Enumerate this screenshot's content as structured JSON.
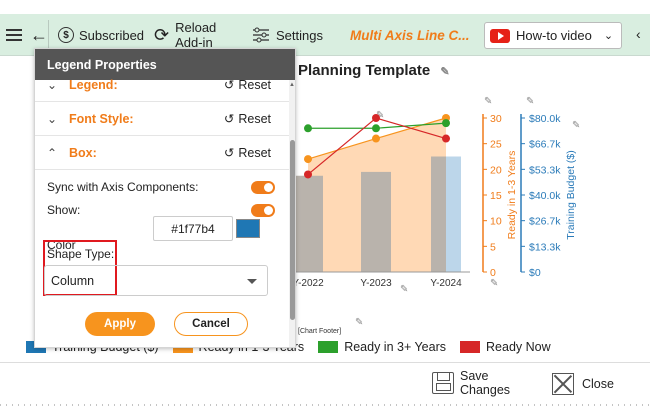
{
  "toolbar": {
    "subscribed_label": "Subscribed",
    "reload_label_1": "Reload",
    "reload_label_2": "Add-in",
    "settings_label": "Settings",
    "title": "Multi Axis Line C...",
    "howto_label": "How-to video"
  },
  "chart": {
    "title_partial": "Planning Template",
    "footer_tag": "Chart Footer]",
    "left_axis_ticks": [
      "30",
      "25",
      "20",
      "15",
      "10",
      "5",
      "0"
    ],
    "left_axis_label": "Ready in 1-3 Years",
    "right_axis_ticks": [
      "$80.0k",
      "$66.7k",
      "$53.3k",
      "$40.0k",
      "$26.7k",
      "$13.3k",
      "$0"
    ],
    "right_axis_label": "Training Budget ($)",
    "x_ticks": [
      "Y-2022",
      "Y-2023",
      "Y-2024"
    ]
  },
  "chart_data": {
    "type": "bar",
    "categories": [
      "Y-2022",
      "Y-2023",
      "Y-2024"
    ],
    "series": [
      {
        "name": "Training Budget ($)",
        "values": [
          50000,
          52000,
          60000
        ],
        "axis": "right"
      },
      {
        "name": "Ready in 1-3 Years",
        "values": [
          22,
          26,
          30
        ],
        "axis": "left"
      },
      {
        "name": "Ready in 3+ Years",
        "values": [
          28,
          28,
          29
        ],
        "axis": "left"
      },
      {
        "name": "Ready Now",
        "values": [
          19,
          30,
          26
        ],
        "axis": "left"
      }
    ],
    "ylim_left": [
      0,
      30
    ],
    "ylim_right": [
      0,
      80000
    ]
  },
  "legend": {
    "items": [
      {
        "label": "Training Budget ($)",
        "color": "#1f77b4"
      },
      {
        "label": "Ready in 1-3 Years",
        "color": "#f7941e"
      },
      {
        "label": "Ready in 3+ Years",
        "color": "#2ca02c"
      },
      {
        "label": "Ready Now",
        "color": "#d62728"
      }
    ]
  },
  "panel": {
    "title": "Legend Properties",
    "sections": [
      {
        "label": "Legend:",
        "reset": "Reset"
      },
      {
        "label": "Font Style:",
        "reset": "Reset"
      },
      {
        "label": "Box:",
        "reset": "Reset"
      }
    ],
    "sync_label": "Sync with Axis Components:",
    "show_label": "Show:",
    "color_label": "Color",
    "color_value": "#1f77b4",
    "shape_type_label": "Shape Type:",
    "shape_type_value": "Column",
    "apply_label": "Apply",
    "cancel_label": "Cancel"
  },
  "bottom": {
    "save_label_1": "Save",
    "save_label_2": "Changes",
    "close_label": "Close"
  },
  "colors": {
    "accent": "#f07c1a",
    "toolbar_bg": "#d9eee0",
    "budget_blue": "#2b7bb9"
  }
}
